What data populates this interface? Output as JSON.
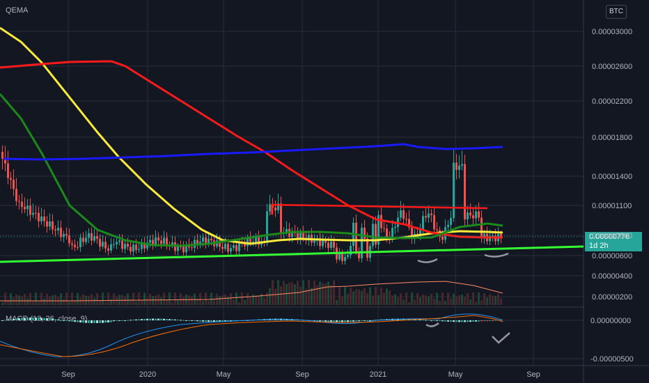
{
  "header": {
    "symbol": "QEMA",
    "currency": "BTC"
  },
  "price_label": {
    "value": "0.00000776",
    "countdown": "1d 2h"
  },
  "macd_legend": "MACD (12, 26, close, 9)",
  "colors": {
    "background": "#131722",
    "grid": "#2a2e39",
    "axis_text": "#b2b5be",
    "up": "#26a69a",
    "down": "#ef5350",
    "ma_yellow": "#ffeb3b",
    "ma_red": "#ff1a1a",
    "ma_green": "#1b8a1b",
    "ma_blue": "#1a1aff",
    "trend_green": "#33ff33",
    "macd_line": "#2196f3",
    "signal_line": "#ff6d00"
  },
  "chart_data": {
    "type": "line",
    "y_axis_ticks": [
      "0.00003000",
      "0.00002600",
      "0.00002200",
      "0.00001800",
      "0.00001400",
      "0.00001100",
      "0.00000800",
      "0.00000600",
      "0.00000400",
      "0.00000200"
    ],
    "macd_axis_ticks": [
      "0.00000000",
      "-0.00000500"
    ],
    "x_axis_ticks": [
      "Sep",
      "2020",
      "May",
      "Sep",
      "2021",
      "May",
      "Sep"
    ],
    "last_price": 7.76e-06,
    "series": [
      {
        "name": "MA yellow",
        "values": [
          3e-05,
          2.7e-05,
          2.3e-05,
          1.75e-05,
          1.25e-05,
          1e-05,
          9.2e-06,
          8.5e-06,
          8e-06,
          7.8e-06,
          7.8e-06,
          8e-06,
          8e-06,
          8.2e-06
        ]
      },
      {
        "name": "MA red",
        "values": [
          2.55e-05,
          2.6e-05,
          2.62e-05,
          2.45e-05,
          2.1e-05,
          1.8e-05,
          1.6e-05,
          1.3e-05,
          1.05e-05,
          9e-06,
          8.5e-06,
          8.8e-06
        ]
      },
      {
        "name": "MA green",
        "values": [
          2.2e-05,
          1.3e-05,
          9.5e-06,
          8.2e-06,
          7.8e-06,
          8e-06,
          8.3e-06,
          8.2e-06,
          8e-06,
          8.2e-06,
          8.6e-06,
          8.6e-06
        ]
      },
      {
        "name": "MA blue",
        "values": [
          1.58e-05,
          1.57e-05,
          1.58e-05,
          1.63e-05,
          1.65e-05,
          1.68e-05,
          1.71e-05,
          1.66e-05,
          1.69e-05
        ]
      }
    ]
  }
}
